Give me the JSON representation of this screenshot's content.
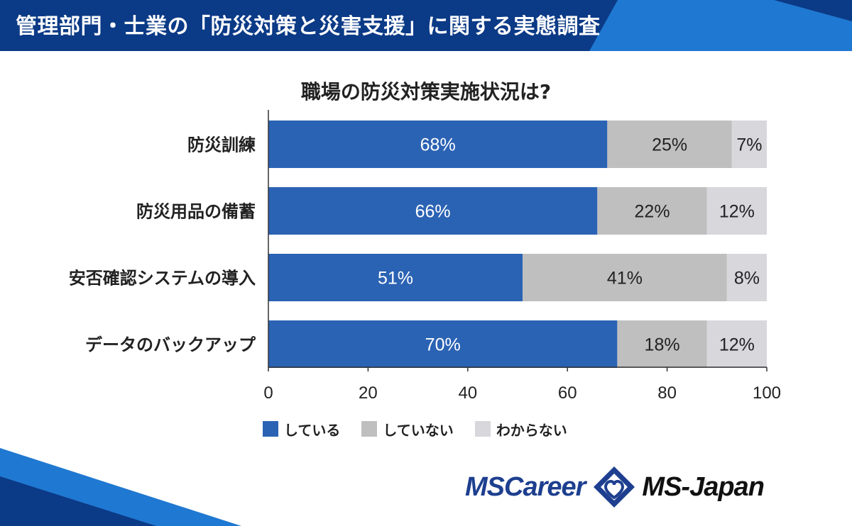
{
  "header": {
    "title": "管理部門・士業の「防災対策と災害支援」に関する実態調査"
  },
  "colors": {
    "header_bg": "#0b3a86",
    "header_accent": "#1f78d1",
    "series": [
      "#2b63b4",
      "#bfbfbf",
      "#d7d7dc"
    ]
  },
  "chart_data": {
    "type": "bar",
    "orientation": "horizontal",
    "stacked": true,
    "title": "職場の防災対策実施状況は?",
    "categories": [
      "防災訓練",
      "防災用品の備蓄",
      "安否確認システムの導入",
      "データのバックアップ"
    ],
    "series": [
      {
        "name": "している",
        "values": [
          68,
          66,
          51,
          70
        ],
        "labels": [
          "68%",
          "66%",
          "51%",
          "70%"
        ]
      },
      {
        "name": "していない",
        "values": [
          25,
          22,
          41,
          18
        ],
        "labels": [
          "25%",
          "22%",
          "41%",
          "18%"
        ]
      },
      {
        "name": "わからない",
        "values": [
          7,
          12,
          8,
          12
        ],
        "labels": [
          "7%",
          "12%",
          "8%",
          "12%"
        ]
      }
    ],
    "xlim": [
      0,
      100
    ],
    "xticks": [
      "0",
      "20",
      "40",
      "60",
      "80",
      "100"
    ],
    "legend_position": "bottom",
    "grid": false
  },
  "logos": {
    "left": "MSCareer",
    "right": "MS-Japan",
    "diamond_icon": "ms-diamond-icon"
  }
}
